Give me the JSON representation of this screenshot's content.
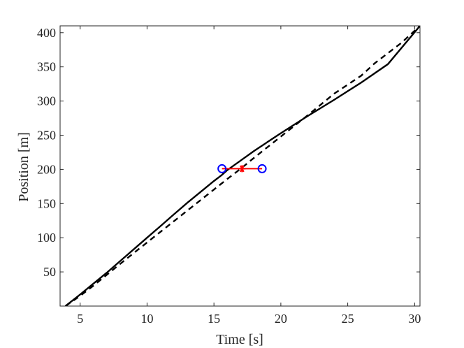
{
  "chart_data": {
    "type": "line",
    "title": "",
    "xlabel": "Time [s]",
    "ylabel": "Position [m]",
    "xlim": [
      3.5,
      30.4
    ],
    "ylim": [
      0,
      410
    ],
    "xticks": [
      5,
      10,
      15,
      20,
      25,
      30
    ],
    "yticks": [
      50,
      100,
      150,
      200,
      250,
      300,
      350,
      400
    ],
    "grid": false,
    "series": [
      {
        "style": "solid",
        "color": "#000000",
        "x": [
          3.9,
          5,
          6,
          7,
          8,
          9,
          10,
          11,
          12,
          13,
          14,
          15,
          15.6,
          16,
          17,
          18,
          19,
          20,
          22,
          24,
          26,
          28,
          30.4
        ],
        "y": [
          0,
          17,
          33,
          49,
          66,
          83,
          100,
          117,
          134,
          151,
          167,
          183,
          192,
          199,
          213,
          227,
          240,
          253,
          278,
          302,
          327,
          354,
          410
        ]
      },
      {
        "style": "dashed",
        "color": "#000000",
        "x": [
          3.9,
          5,
          6,
          8,
          10,
          12,
          14,
          16,
          17,
          18,
          20,
          22,
          24,
          26,
          27,
          28,
          29,
          30.4
        ],
        "y": [
          0,
          15,
          30,
          62,
          93,
          124,
          155,
          186,
          201,
          217,
          248,
          279,
          311,
          337,
          355,
          370,
          385,
          410
        ]
      },
      {
        "marker": "circle",
        "color": "#0000ff",
        "x": [
          15.6,
          18.6
        ],
        "y": [
          201,
          201
        ]
      },
      {
        "marker": "asterisk",
        "color": "#ff0000",
        "x": [
          17.1
        ],
        "y": [
          201
        ]
      }
    ],
    "annotations": [
      {
        "type": "segment",
        "color": "#ff0000",
        "x": [
          15.6,
          18.6
        ],
        "y": [
          201,
          201
        ]
      }
    ]
  }
}
